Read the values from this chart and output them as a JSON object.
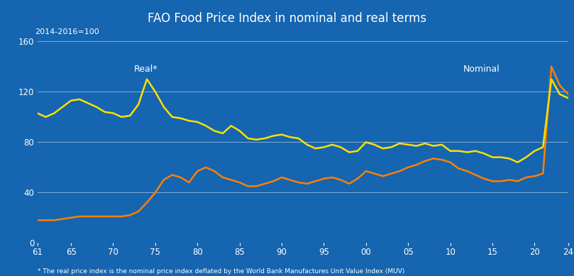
{
  "title": "FAO Food Price Index in nominal and real terms",
  "ylabel": "2014-2016=100",
  "footnote": "* The real price index is the nominal price index deflated by the World Bank Manufactures Unit Value Index (MUV)",
  "background_color": "#1565b0",
  "title_bg_color": "#1a1a72",
  "title_color": "white",
  "text_color": "white",
  "grid_color": "#5599cc",
  "ylim": [
    0,
    160
  ],
  "yticks": [
    0,
    40,
    80,
    120,
    160
  ],
  "xtick_labels": [
    "61",
    "65",
    "70",
    "75",
    "80",
    "85",
    "90",
    "95",
    "00",
    "05",
    "10",
    "15",
    "20",
    "24"
  ],
  "real_color": "#FFE000",
  "nominal_color": "#FF8000",
  "real_label": "Real*",
  "nominal_label": "Nominal",
  "real_y": [
    103,
    100,
    103,
    108,
    113,
    114,
    111,
    108,
    104,
    103,
    100,
    101,
    110,
    130,
    120,
    108,
    100,
    99,
    97,
    96,
    93,
    89,
    87,
    93,
    89,
    83,
    82,
    83,
    85,
    86,
    84,
    83,
    78,
    75,
    76,
    78,
    76,
    72,
    73,
    80,
    78,
    75,
    76,
    79,
    78,
    77,
    79,
    77,
    78,
    73,
    73,
    72,
    73,
    71,
    68,
    68,
    67,
    64,
    68,
    73,
    76,
    130,
    118,
    115
  ],
  "nominal_y": [
    18,
    18,
    18,
    19,
    20,
    21,
    21,
    21,
    21,
    21,
    21,
    22,
    25,
    32,
    40,
    50,
    54,
    52,
    48,
    57,
    60,
    57,
    52,
    50,
    48,
    45,
    45,
    47,
    49,
    52,
    50,
    48,
    47,
    49,
    51,
    52,
    50,
    47,
    51,
    57,
    55,
    53,
    55,
    57,
    60,
    62,
    65,
    67,
    66,
    64,
    59,
    57,
    54,
    51,
    49,
    49,
    50,
    49,
    52,
    53,
    55,
    140,
    125,
    118
  ]
}
